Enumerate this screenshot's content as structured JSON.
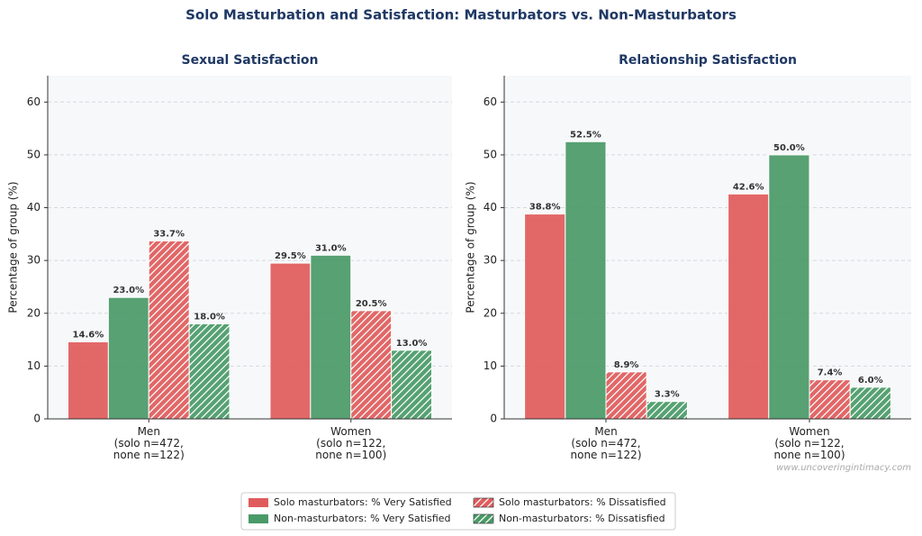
{
  "title": "Solo Masturbation and Satisfaction: Masturbators vs. Non-Masturbators",
  "watermark": "www.uncoveringintimacy.com",
  "chart_data": [
    {
      "type": "bar",
      "title": "Sexual Satisfaction",
      "y_label": "Percentage of group (%)",
      "categories": [
        "Men\n(solo n=472,\nnone n=122)",
        "Women\n(solo n=122,\nnone n=100)"
      ],
      "series": [
        {
          "name": "Solo masturbators: % Very Satisfied",
          "color": "#e05c5c",
          "hatch": false,
          "values": [
            14.6,
            29.5
          ],
          "value_labels": [
            "14.6%",
            "29.5%"
          ]
        },
        {
          "name": "Non-masturbators: % Very Satisfied",
          "color": "#4a9a68",
          "hatch": false,
          "values": [
            23.0,
            31.0
          ],
          "value_labels": [
            "23.0%",
            "31.0%"
          ]
        },
        {
          "name": "Solo masturbators: % Dissatisfied",
          "color": "#e05c5c",
          "hatch": true,
          "values": [
            33.7,
            20.5
          ],
          "value_labels": [
            "33.7%",
            "20.5%"
          ]
        },
        {
          "name": "Non-masturbators: % Dissatisfied",
          "color": "#4a9a68",
          "hatch": true,
          "values": [
            18.0,
            13.0
          ],
          "value_labels": [
            "18.0%",
            "13.0%"
          ]
        }
      ],
      "ylim": [
        0,
        65
      ],
      "yticks": [
        0,
        10,
        20,
        30,
        40,
        50,
        60
      ],
      "grid": true
    },
    {
      "type": "bar",
      "title": "Relationship Satisfaction",
      "y_label": "Percentage of group (%)",
      "categories": [
        "Men\n(solo n=472,\nnone n=122)",
        "Women\n(solo n=122,\nnone n=100)"
      ],
      "series": [
        {
          "name": "Solo masturbators: % Very Satisfied",
          "color": "#e05c5c",
          "hatch": false,
          "values": [
            38.8,
            42.6
          ],
          "value_labels": [
            "38.8%",
            "42.6%"
          ]
        },
        {
          "name": "Non-masturbators: % Very Satisfied",
          "color": "#4a9a68",
          "hatch": false,
          "values": [
            52.5,
            50.0
          ],
          "value_labels": [
            "52.5%",
            "50.0%"
          ]
        },
        {
          "name": "Solo masturbators: % Dissatisfied",
          "color": "#e05c5c",
          "hatch": true,
          "values": [
            8.9,
            7.4
          ],
          "value_labels": [
            "8.9%",
            "7.4%"
          ]
        },
        {
          "name": "Non-masturbators: % Dissatisfied",
          "color": "#4a9a68",
          "hatch": true,
          "values": [
            3.3,
            6.0
          ],
          "value_labels": [
            "3.3%",
            "6.0%"
          ]
        }
      ],
      "ylim": [
        0,
        65
      ],
      "yticks": [
        0,
        10,
        20,
        30,
        40,
        50,
        60
      ],
      "grid": true
    }
  ]
}
